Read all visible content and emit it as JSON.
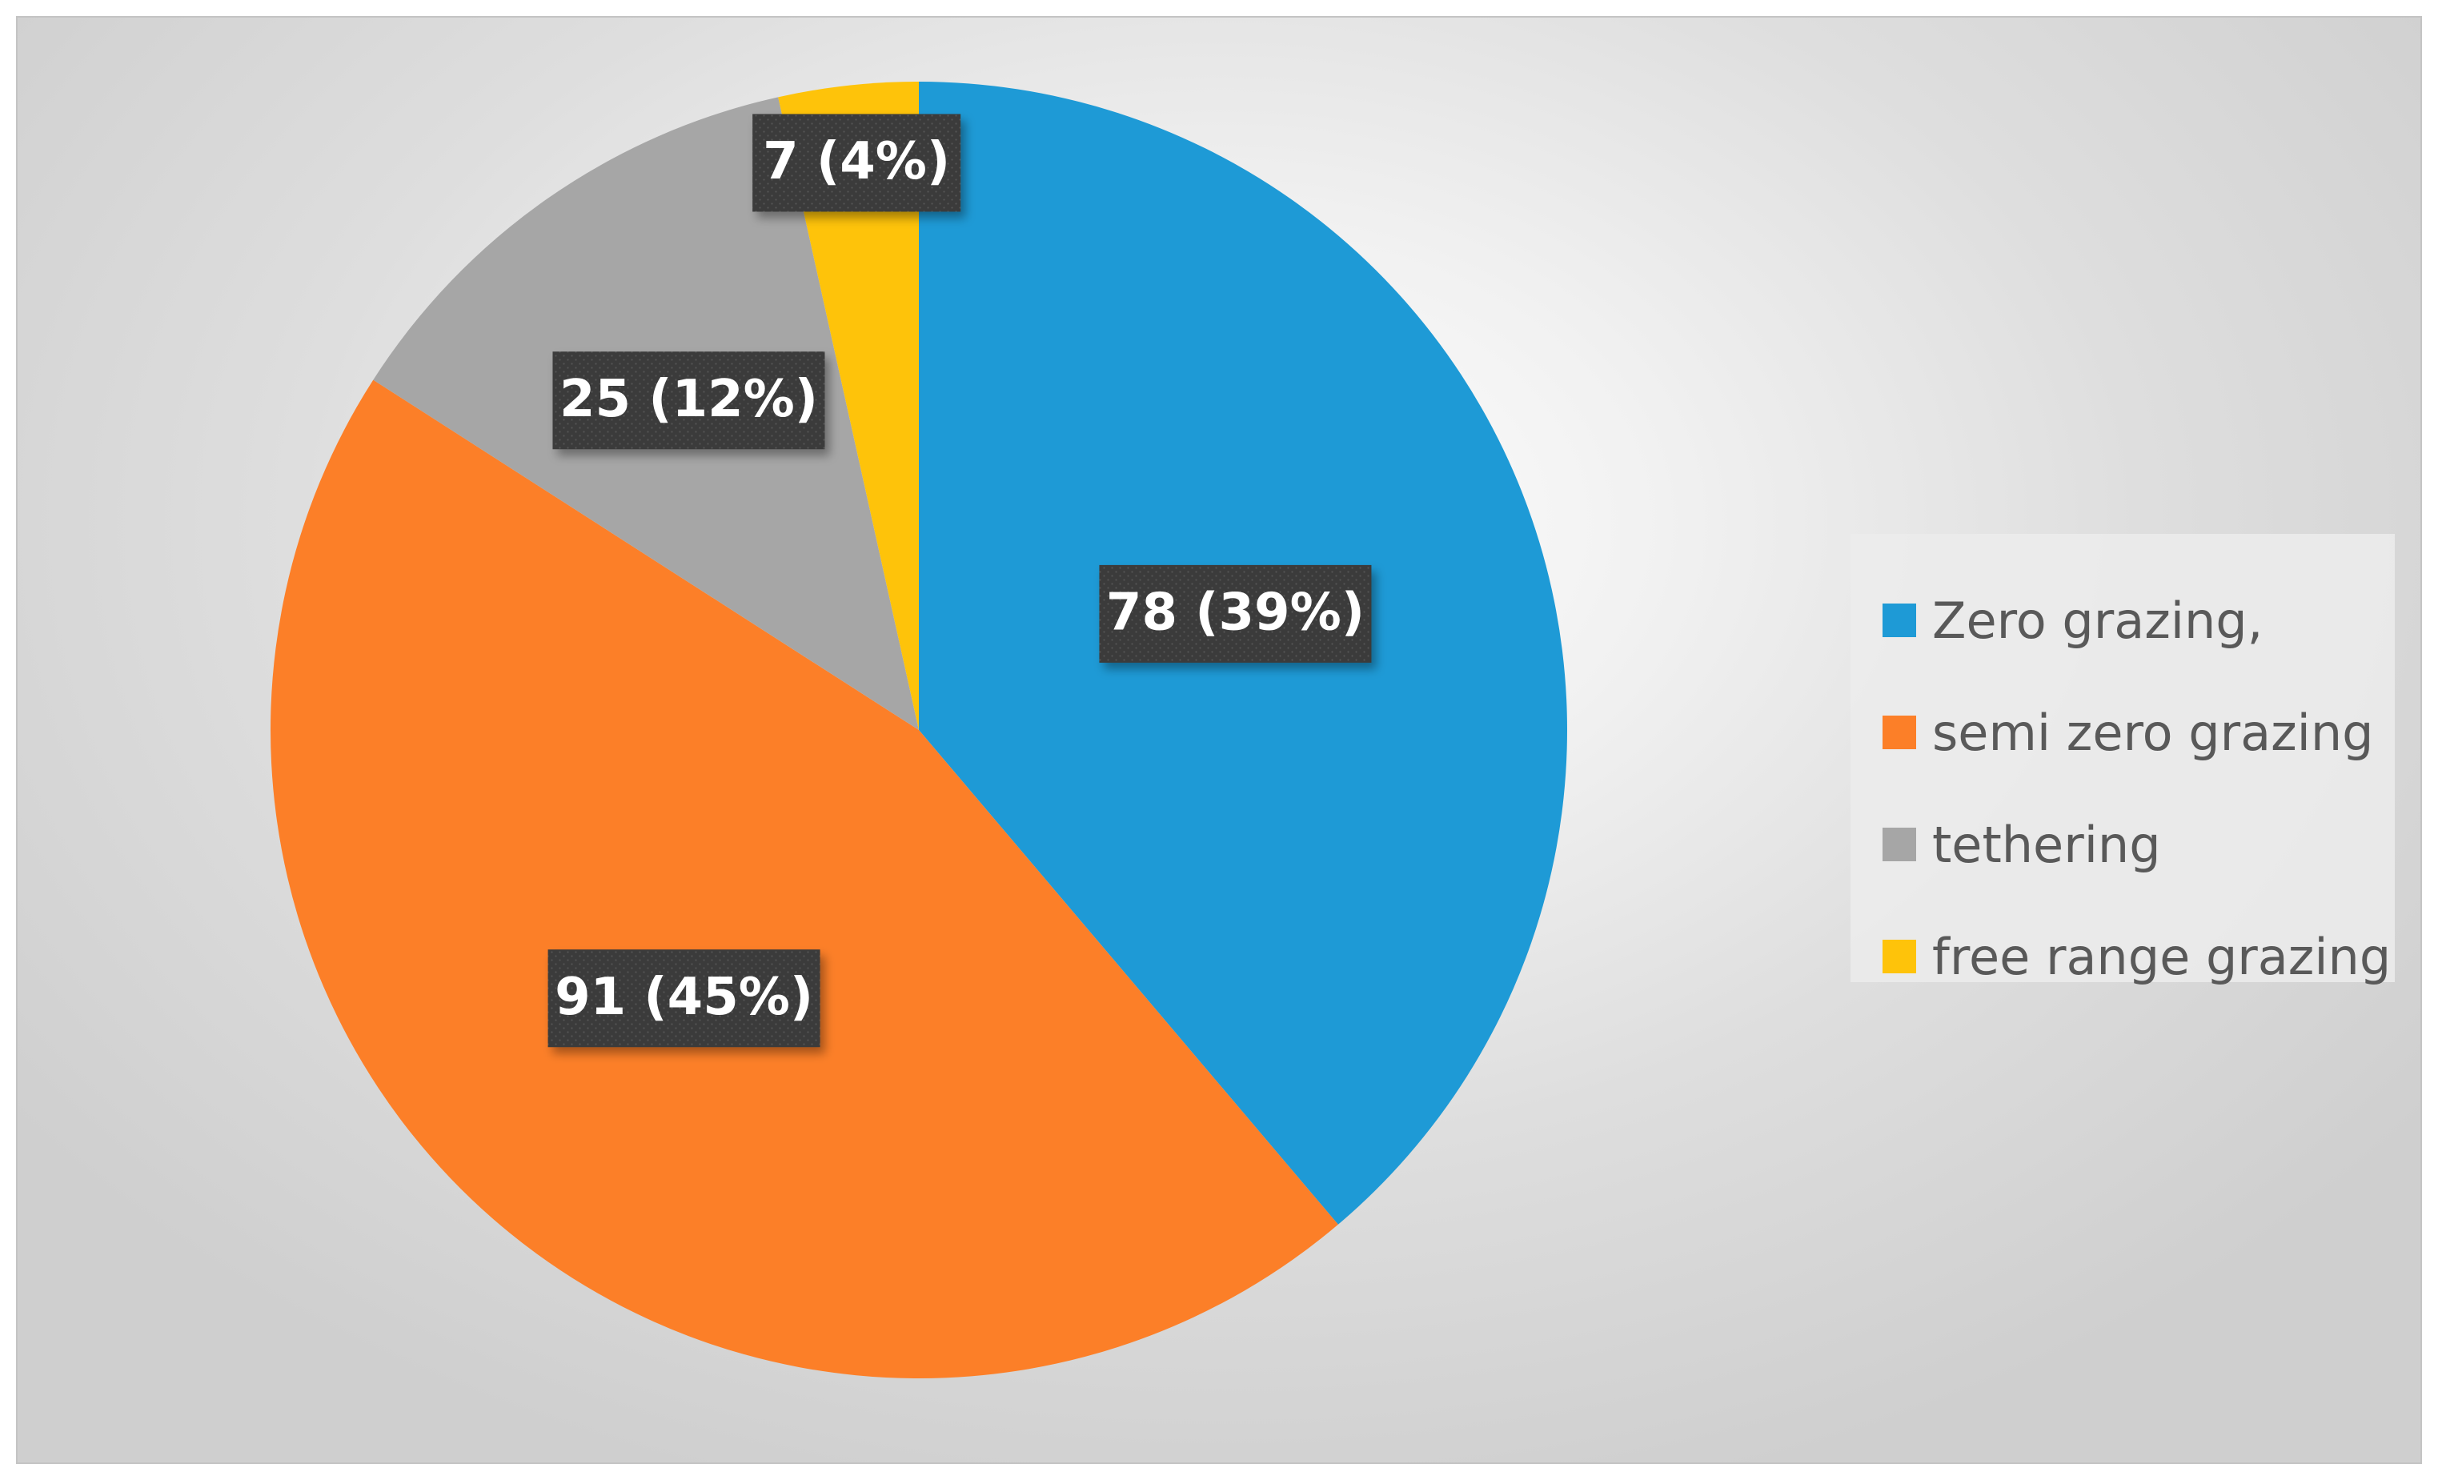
{
  "chart_data": {
    "type": "pie",
    "title": "",
    "categories": [
      "Zero grazing,",
      "semi zero grazing",
      "tethering",
      "free range grazing"
    ],
    "values": [
      78,
      91,
      25,
      7
    ],
    "percent_labels": [
      "39%",
      "45%",
      "12%",
      "4%"
    ],
    "data_labels": [
      "78 (39%)",
      "91 (45%)",
      "25 (12%)",
      "7 (4%)"
    ],
    "colors": [
      "#1e9ad6",
      "#fc7f28",
      "#a6a6a6",
      "#fec30a"
    ],
    "legend_position": "right",
    "data_label_style": "white bold text on dark dotted box"
  }
}
